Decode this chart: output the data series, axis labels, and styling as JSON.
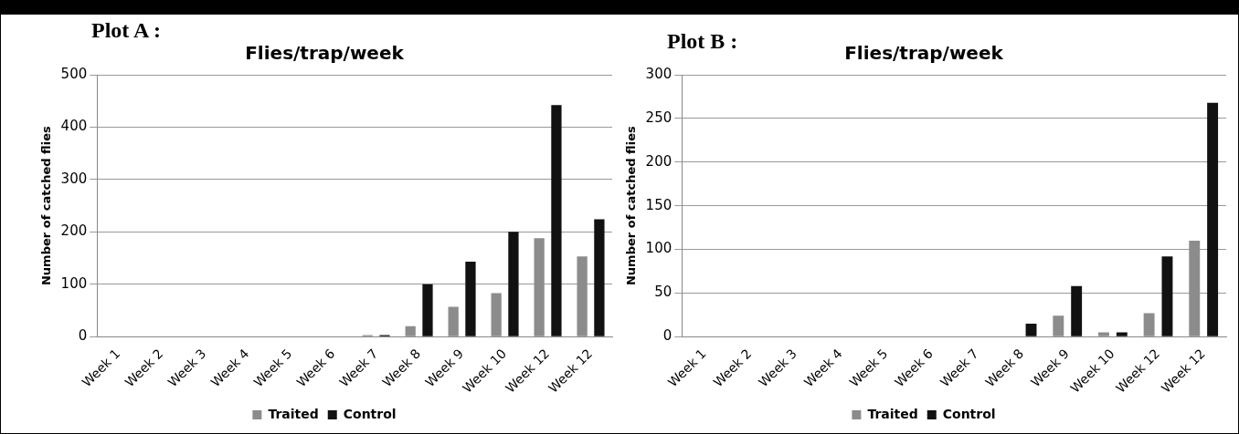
{
  "chart_data": [
    {
      "type": "bar",
      "title": "Flies/trap/week",
      "ylabel": "Number of catched flies",
      "annotations": [
        "Plot A :"
      ],
      "categories": [
        "Week 1",
        "Week 2",
        "Week 3",
        "Week 4",
        "Week 5",
        "Week 6",
        "Week 7",
        "Week 8",
        "Week 9",
        "Week 10",
        "Week 12",
        "Week 12"
      ],
      "series": [
        {
          "name": "Traited",
          "color": "#8c8c8c",
          "values": [
            0,
            0,
            0,
            0,
            0,
            0,
            3,
            20,
            57,
            83,
            188,
            153
          ]
        },
        {
          "name": "Control",
          "color": "#111111",
          "values": [
            0,
            0,
            0,
            0,
            0,
            0,
            3,
            100,
            143,
            200,
            442,
            224
          ]
        }
      ],
      "ylim": [
        0,
        500
      ],
      "yticks": [
        0,
        100,
        200,
        300,
        400,
        500
      ],
      "grid": "y",
      "legend": "bottom"
    },
    {
      "type": "bar",
      "title": "Flies/trap/week",
      "ylabel": "Number of catched flies",
      "annotations": [
        "Plot B :"
      ],
      "categories": [
        "Week 1",
        "Week 2",
        "Week 3",
        "Week 4",
        "Week 5",
        "Week 6",
        "Week 7",
        "Week 8",
        "Week 9",
        "Week 10",
        "Week 12",
        "Week 12"
      ],
      "series": [
        {
          "name": "Traited",
          "color": "#8c8c8c",
          "values": [
            0,
            0,
            0,
            0,
            0,
            0,
            0,
            0,
            24,
            5,
            27,
            110
          ]
        },
        {
          "name": "Control",
          "color": "#111111",
          "values": [
            0,
            0,
            0,
            0,
            0,
            0,
            0,
            15,
            58,
            5,
            92,
            268
          ]
        }
      ],
      "ylim": [
        0,
        300
      ],
      "yticks": [
        0,
        50,
        100,
        150,
        200,
        250,
        300
      ],
      "grid": "y",
      "legend": "bottom"
    }
  ]
}
